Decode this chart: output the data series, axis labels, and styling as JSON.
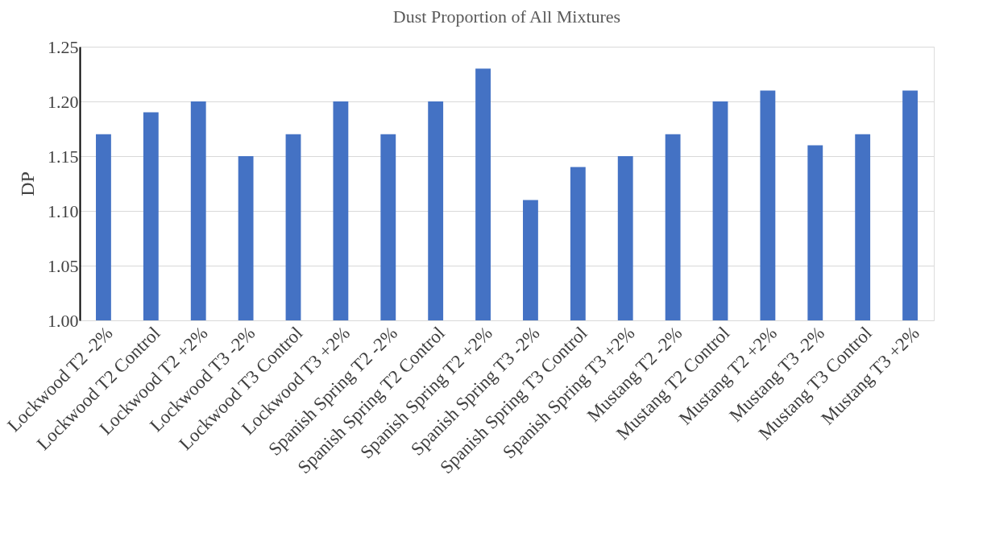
{
  "chart_data": {
    "type": "bar",
    "title": "Dust Proportion of All Mixtures",
    "ylabel": "DP",
    "categories": [
      "Lockwood T2 -2%",
      "Lockwood T2 Control",
      "Lockwood T2 +2%",
      "Lockwood T3 -2%",
      "Lockwood T3 Control",
      "Lockwood T3 +2%",
      "Spanish Spring T2 -2%",
      "Spanish Spring T2 Control",
      "Spanish Spring T2 +2%",
      "Spanish Spring T3 -2%",
      "Spanish Spring T3 Control",
      "Spanish Spring T3 +2%",
      "Mustang T2 -2%",
      "Mustang T2 Control",
      "Mustang T2 +2%",
      "Mustang T3 -2%",
      "Mustang T3 Control",
      "Mustang T3 +2%"
    ],
    "values": [
      1.17,
      1.19,
      1.2,
      1.15,
      1.17,
      1.2,
      1.17,
      1.2,
      1.23,
      1.11,
      1.14,
      1.15,
      1.17,
      1.2,
      1.21,
      1.16,
      1.17,
      1.21
    ],
    "color": "#4472c4",
    "ylim": [
      1.0,
      1.25
    ],
    "yticks": [
      {
        "value": 1.0,
        "label": "1.00"
      },
      {
        "value": 1.05,
        "label": "1.05"
      },
      {
        "value": 1.1,
        "label": "1.10"
      },
      {
        "value": 1.15,
        "label": "1.15"
      },
      {
        "value": 1.2,
        "label": "1.20"
      },
      1.25
    ],
    "grid": "y"
  }
}
